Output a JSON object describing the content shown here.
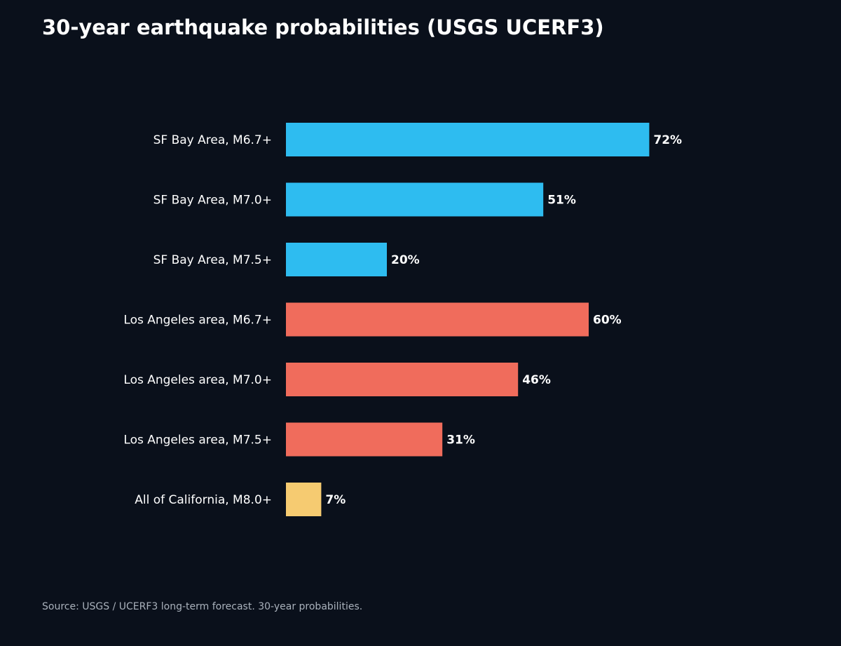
{
  "chart_data": {
    "type": "bar",
    "orientation": "horizontal",
    "title": "30-year earthquake probabilities (USGS UCERF3)",
    "categories": [
      "SF Bay Area, M6.7+",
      "SF Bay Area, M7.0+",
      "SF Bay Area, M7.5+",
      "Los Angeles area, M6.7+",
      "Los Angeles area, M7.0+",
      "Los Angeles area, M7.5+",
      "All of California, M8.0+"
    ],
    "values": [
      72,
      51,
      20,
      60,
      46,
      31,
      7
    ],
    "value_labels": [
      "72%",
      "51%",
      "20%",
      "60%",
      "46%",
      "31%",
      "7%"
    ],
    "unit": "%",
    "groups": [
      "sf",
      "sf",
      "sf",
      "la",
      "la",
      "la",
      "ca"
    ],
    "xlim": [
      0,
      100
    ],
    "grid": false,
    "legend": "none",
    "source": "Source: USGS / UCERF3 long-term forecast. 30-year probabilities."
  },
  "colors": {
    "background": "#0a101b",
    "sf": "#2ebcf0",
    "la": "#f06c5c",
    "ca": "#f6cb71",
    "text": "#ffffff",
    "muted": "#a9b1bb"
  }
}
